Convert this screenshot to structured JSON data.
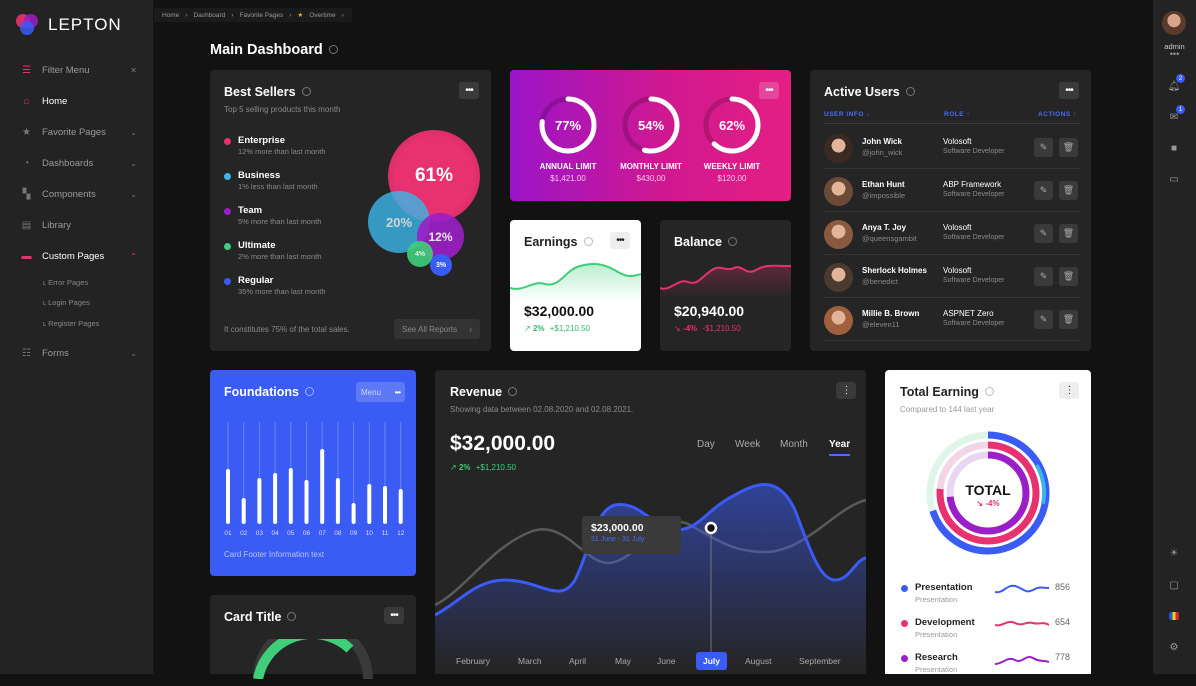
{
  "app": {
    "name": "LEPTON"
  },
  "sidebar": {
    "filter_label": "Filter Menu",
    "items": [
      {
        "label": "Home",
        "icon": "home-icon"
      },
      {
        "label": "Favorite Pages",
        "icon": "star-icon"
      },
      {
        "label": "Dashboards",
        "icon": "dashboard-icon"
      },
      {
        "label": "Components",
        "icon": "components-icon"
      },
      {
        "label": "Library",
        "icon": "library-icon"
      },
      {
        "label": "Custom Pages",
        "icon": "pages-icon"
      }
    ],
    "sub_items": [
      "Error Pages",
      "Login Pages",
      "Register Pages"
    ],
    "forms_label": "Forms"
  },
  "breadcrumb": [
    "Home",
    "Dashboard",
    "Favorite Pages",
    "Overtime"
  ],
  "topbar": {
    "user": "admin",
    "notif_count": "2",
    "msg_count": "1"
  },
  "page": {
    "title": "Main Dashboard"
  },
  "best_sellers": {
    "title": "Best Sellers",
    "subtitle": "Top 5 selling products this month",
    "items": [
      {
        "name": "Enterprise",
        "desc": "12% more than last month",
        "color": "#e8316f"
      },
      {
        "name": "Business",
        "desc": "1% less than last month",
        "color": "#3ab7e8"
      },
      {
        "name": "Team",
        "desc": "5% more than last month",
        "color": "#9b1fc7"
      },
      {
        "name": "Ultimate",
        "desc": "2% more than last month",
        "color": "#3fcf7a"
      },
      {
        "name": "Regular",
        "desc": "35% more than last month",
        "color": "#3b5bf5"
      }
    ],
    "bubbles": [
      "61%",
      "20%",
      "12%",
      "4%",
      "3%"
    ],
    "footer": "It constitutes 75% of the total sales.",
    "button": "See All Reports"
  },
  "limits": [
    {
      "pct": "77%",
      "label": "ANNUAL LIMIT",
      "value": "$1,421.00",
      "fraction": 0.77
    },
    {
      "pct": "54%",
      "label": "MONTHLY LIMIT",
      "value": "$430,00",
      "fraction": 0.54
    },
    {
      "pct": "62%",
      "label": "WEEKLY LIMIT",
      "value": "$120,00",
      "fraction": 0.62
    }
  ],
  "earnings": {
    "title": "Earnings",
    "amount": "$32,000.00",
    "pct": "2%",
    "delta": "+$1,210.50"
  },
  "balance": {
    "title": "Balance",
    "amount": "$20,940.00",
    "pct": "-4%",
    "delta": "-$1,210.50"
  },
  "active_users": {
    "title": "Active Users",
    "columns": [
      "USER INFO",
      "ROLE",
      "ACTIONS"
    ],
    "rows": [
      {
        "name": "John Wick",
        "handle": "@john_wick",
        "company": "Volosoft",
        "role": "Software Developer"
      },
      {
        "name": "Ethan Hunt",
        "handle": "@impossible",
        "company": "ABP Framework",
        "role": "Software Developer"
      },
      {
        "name": "Anya T. Joy",
        "handle": "@queensgambit",
        "company": "Volosoft",
        "role": "Software Developer"
      },
      {
        "name": "Sherlock Holmes",
        "handle": "@benedict",
        "company": "Volosoft",
        "role": "Software Developer"
      },
      {
        "name": "Millie B. Brown",
        "handle": "@eleven11",
        "company": "ASPNET Zero",
        "role": "Software Developer"
      }
    ]
  },
  "foundations": {
    "title": "Foundations",
    "menu": "Menu",
    "months": [
      "01",
      "02",
      "03",
      "04",
      "05",
      "06",
      "07",
      "08",
      "09",
      "10",
      "11",
      "12"
    ],
    "values": [
      0.51,
      0.22,
      0.42,
      0.47,
      0.52,
      0.4,
      0.71,
      0.42,
      0.17,
      0.36,
      0.34,
      0.31
    ],
    "footer": "Card Footer Information text"
  },
  "revenue": {
    "title": "Revenue",
    "subtitle": "Showing data between 02.08.2020 and 02.08.2021.",
    "amount": "$32,000.00",
    "pct": "2%",
    "delta": "+$1,210.50",
    "tabs": [
      "Day",
      "Week",
      "Month",
      "Year"
    ],
    "active_tab": "Year",
    "tooltip_value": "$23,000.00",
    "tooltip_date": "31 June - 31 July",
    "months": [
      "February",
      "March",
      "April",
      "May",
      "June",
      "July",
      "August",
      "September"
    ],
    "active_month": "July"
  },
  "total_earning": {
    "title": "Total Earning",
    "subtitle": "Compared to 144 last year",
    "center_label": "TOTAL",
    "center_pct": "-4%",
    "legend": [
      {
        "name": "Presentation",
        "sub": "Presentation",
        "value": "856",
        "color": "#3b5bf5"
      },
      {
        "name": "Development",
        "sub": "Presentation",
        "value": "654",
        "color": "#e8316f"
      },
      {
        "name": "Research",
        "sub": "Presentation",
        "value": "778",
        "color": "#9b1fc7"
      }
    ]
  },
  "card_title": {
    "title": "Card Title"
  },
  "colors": {
    "accent": "#e8316f",
    "blue": "#3b5bf5",
    "card": "#252525",
    "bg": "#121212"
  }
}
